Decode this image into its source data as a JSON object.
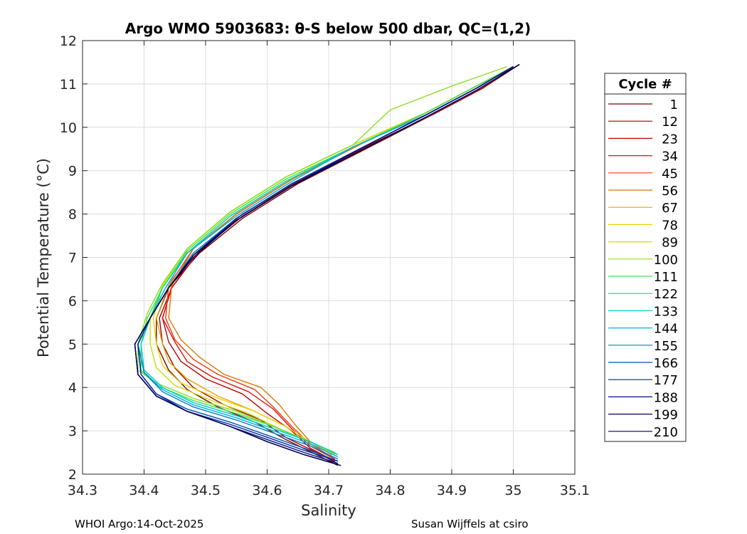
{
  "chart_data": {
    "type": "line",
    "title": "Argo WMO 5903683: θ-S below 500 dbar,  QC=(1,2)",
    "xlabel": "Salinity",
    "ylabel": "Potential Temperature (°C)",
    "xlim": [
      34.3,
      35.1
    ],
    "ylim": [
      2,
      12
    ],
    "xticks": [
      34.3,
      34.4,
      34.5,
      34.6,
      34.7,
      34.8,
      34.9,
      35,
      35.1
    ],
    "xtick_labels": [
      "34.3",
      "34.4",
      "34.5",
      "34.6",
      "34.7",
      "34.8",
      "34.9",
      "35",
      "35.1"
    ],
    "yticks": [
      2,
      3,
      4,
      5,
      6,
      7,
      8,
      9,
      10,
      11,
      12
    ],
    "ytick_labels": [
      "2",
      "3",
      "4",
      "5",
      "6",
      "7",
      "8",
      "9",
      "10",
      "11",
      "12"
    ],
    "grid": true,
    "legend": {
      "title": "Cycle #",
      "placement": "outside-right",
      "entries": [
        {
          "label": "1",
          "color": "#7f0000"
        },
        {
          "label": "12",
          "color": "#a00000"
        },
        {
          "label": "23",
          "color": "#c00000"
        },
        {
          "label": "34",
          "color": "#e01010"
        },
        {
          "label": "45",
          "color": "#f03a10"
        },
        {
          "label": "56",
          "color": "#d77800"
        },
        {
          "label": "67",
          "color": "#e0a800"
        },
        {
          "label": "78",
          "color": "#f0d000"
        },
        {
          "label": "89",
          "color": "#c8e000"
        },
        {
          "label": "100",
          "color": "#88e020"
        },
        {
          "label": "111",
          "color": "#40e050"
        },
        {
          "label": "122",
          "color": "#10d890"
        },
        {
          "label": "133",
          "color": "#00d0c8"
        },
        {
          "label": "144",
          "color": "#00b0e0"
        },
        {
          "label": "155",
          "color": "#0080c0"
        },
        {
          "label": "166",
          "color": "#0050b0"
        },
        {
          "label": "177",
          "color": "#0028a0"
        },
        {
          "label": "188",
          "color": "#001080"
        },
        {
          "label": "199",
          "color": "#000060"
        },
        {
          "label": "210",
          "color": "#000050"
        }
      ]
    },
    "series": [
      {
        "name": "1",
        "color": "#7f0000",
        "x": [
          34.715,
          34.68,
          34.63,
          34.58,
          34.52,
          34.47,
          34.44,
          34.42,
          34.42,
          34.44,
          34.49,
          34.56,
          34.65,
          34.76,
          34.87,
          34.95,
          35.01
        ],
        "y": [
          2.2,
          2.45,
          2.8,
          3.2,
          3.55,
          3.95,
          4.4,
          5.0,
          5.6,
          6.3,
          7.1,
          7.9,
          8.7,
          9.5,
          10.3,
          10.9,
          11.45
        ]
      },
      {
        "name": "12",
        "color": "#a00000",
        "x": [
          34.714,
          34.68,
          34.63,
          34.59,
          34.53,
          34.48,
          34.45,
          34.43,
          34.425,
          34.445,
          34.49,
          34.56,
          34.65,
          34.76,
          34.87,
          34.95,
          35.0
        ],
        "y": [
          2.25,
          2.5,
          2.85,
          3.25,
          3.6,
          4.0,
          4.45,
          5.0,
          5.6,
          6.3,
          7.15,
          7.95,
          8.75,
          9.55,
          10.3,
          10.9,
          11.4
        ]
      },
      {
        "name": "23",
        "color": "#c00000",
        "x": [
          34.71,
          34.67,
          34.64,
          34.6,
          34.56,
          34.5,
          34.46,
          34.44,
          34.43,
          34.445,
          34.49,
          34.56,
          34.65,
          34.76,
          34.87,
          34.95,
          35.0
        ],
        "y": [
          2.3,
          2.6,
          3.0,
          3.4,
          3.85,
          4.2,
          4.6,
          5.05,
          5.6,
          6.3,
          7.15,
          8.0,
          8.75,
          9.55,
          10.3,
          10.9,
          11.4
        ]
      },
      {
        "name": "34",
        "color": "#e01010",
        "x": [
          34.71,
          34.67,
          34.64,
          34.61,
          34.57,
          34.51,
          34.47,
          34.45,
          34.43,
          34.445,
          34.48,
          34.55,
          34.64,
          34.75,
          34.86,
          34.94,
          35.0
        ],
        "y": [
          2.35,
          2.65,
          3.05,
          3.5,
          3.9,
          4.25,
          4.6,
          5.05,
          5.6,
          6.35,
          7.2,
          8.0,
          8.8,
          9.6,
          10.35,
          10.95,
          11.4
        ]
      },
      {
        "name": "45",
        "color": "#f03a10",
        "x": [
          34.705,
          34.67,
          34.64,
          34.61,
          34.58,
          34.52,
          34.48,
          34.45,
          34.435,
          34.44,
          34.48,
          34.55,
          34.64,
          34.75,
          34.86,
          34.94,
          35.0
        ],
        "y": [
          2.4,
          2.7,
          3.1,
          3.55,
          3.95,
          4.3,
          4.65,
          5.1,
          5.6,
          6.35,
          7.2,
          8.0,
          8.8,
          9.6,
          10.35,
          10.95,
          11.4
        ]
      },
      {
        "name": "56",
        "color": "#d77800",
        "x": [
          34.705,
          34.67,
          34.645,
          34.62,
          34.59,
          34.53,
          34.49,
          34.46,
          34.44,
          34.445,
          34.48,
          34.55,
          34.64,
          34.75,
          34.86,
          34.94,
          35.0
        ],
        "y": [
          2.45,
          2.75,
          3.15,
          3.6,
          4.0,
          4.3,
          4.7,
          5.1,
          5.6,
          6.35,
          7.2,
          8.0,
          8.8,
          9.6,
          10.35,
          10.95,
          11.4
        ]
      },
      {
        "name": "67",
        "color": "#e0a800",
        "x": [
          34.71,
          34.67,
          34.63,
          34.58,
          34.52,
          34.47,
          34.44,
          34.43,
          34.42,
          34.44,
          34.47,
          34.54,
          34.63,
          34.74,
          34.86,
          34.94,
          35.0
        ],
        "y": [
          2.45,
          2.75,
          3.1,
          3.45,
          3.8,
          4.2,
          4.6,
          5.0,
          5.6,
          6.35,
          7.2,
          8.05,
          8.85,
          9.6,
          10.35,
          10.95,
          11.4
        ]
      },
      {
        "name": "78",
        "color": "#f0d000",
        "x": [
          34.71,
          34.67,
          34.63,
          34.58,
          34.52,
          34.46,
          34.43,
          34.42,
          34.415,
          34.43,
          34.47,
          34.54,
          34.63,
          34.74,
          34.86,
          34.94,
          35.0
        ],
        "y": [
          2.45,
          2.75,
          3.1,
          3.45,
          3.75,
          4.1,
          4.5,
          5.0,
          5.6,
          6.35,
          7.2,
          8.05,
          8.85,
          9.6,
          10.35,
          10.95,
          11.4
        ]
      },
      {
        "name": "89",
        "color": "#c8e000",
        "x": [
          34.71,
          34.67,
          34.62,
          34.57,
          34.51,
          34.45,
          34.42,
          34.41,
          34.41,
          34.43,
          34.47,
          34.54,
          34.63,
          34.74,
          34.86,
          34.94,
          35.0
        ],
        "y": [
          2.45,
          2.75,
          3.05,
          3.4,
          3.7,
          4.05,
          4.45,
          5.0,
          5.6,
          6.35,
          7.2,
          8.05,
          8.85,
          9.6,
          10.35,
          10.95,
          11.4
        ]
      },
      {
        "name": "100",
        "color": "#88e020",
        "x": [
          34.71,
          34.66,
          34.61,
          34.55,
          34.48,
          34.42,
          34.39,
          34.39,
          34.405,
          34.43,
          34.47,
          34.54,
          34.63,
          34.74,
          34.8,
          34.9,
          34.99
        ],
        "y": [
          2.5,
          2.8,
          3.1,
          3.45,
          3.75,
          4.1,
          4.4,
          5.0,
          5.7,
          6.4,
          7.2,
          8.05,
          8.85,
          9.6,
          10.4,
          10.95,
          11.4
        ]
      },
      {
        "name": "111",
        "color": "#40e050",
        "x": [
          34.71,
          34.66,
          34.61,
          34.55,
          34.48,
          34.42,
          34.395,
          34.395,
          34.405,
          34.43,
          34.47,
          34.54,
          34.63,
          34.74,
          34.86,
          34.94,
          35.0
        ],
        "y": [
          2.5,
          2.8,
          3.1,
          3.4,
          3.7,
          4.05,
          4.4,
          5.0,
          5.6,
          6.3,
          7.15,
          8.0,
          8.8,
          9.55,
          10.35,
          10.95,
          11.4
        ]
      },
      {
        "name": "122",
        "color": "#10d890",
        "x": [
          34.715,
          34.67,
          34.61,
          34.55,
          34.48,
          34.43,
          34.4,
          34.395,
          34.41,
          34.43,
          34.47,
          34.54,
          34.63,
          34.74,
          34.86,
          34.94,
          35.0
        ],
        "y": [
          2.45,
          2.75,
          3.05,
          3.35,
          3.65,
          4.0,
          4.4,
          5.0,
          5.6,
          6.3,
          7.1,
          7.95,
          8.75,
          9.55,
          10.3,
          10.9,
          11.4
        ]
      },
      {
        "name": "133",
        "color": "#00d0c8",
        "x": [
          34.715,
          34.67,
          34.61,
          34.55,
          34.48,
          34.43,
          34.4,
          34.395,
          34.41,
          34.435,
          34.47,
          34.54,
          34.63,
          34.74,
          34.86,
          34.94,
          35.0
        ],
        "y": [
          2.45,
          2.75,
          3.05,
          3.35,
          3.65,
          4.0,
          4.4,
          5.0,
          5.6,
          6.3,
          7.1,
          7.95,
          8.75,
          9.55,
          10.3,
          10.9,
          11.4
        ]
      },
      {
        "name": "144",
        "color": "#00b0e0",
        "x": [
          34.715,
          34.67,
          34.61,
          34.55,
          34.48,
          34.43,
          34.4,
          34.39,
          34.41,
          34.435,
          34.47,
          34.55,
          34.64,
          34.74,
          34.86,
          34.94,
          35.0
        ],
        "y": [
          2.4,
          2.7,
          3.0,
          3.3,
          3.6,
          3.95,
          4.35,
          5.0,
          5.6,
          6.3,
          7.1,
          7.95,
          8.75,
          9.55,
          10.3,
          10.9,
          11.4
        ]
      },
      {
        "name": "155",
        "color": "#0080c0",
        "x": [
          34.715,
          34.67,
          34.61,
          34.55,
          34.48,
          34.43,
          34.4,
          34.39,
          34.41,
          34.44,
          34.48,
          34.55,
          34.64,
          34.75,
          34.86,
          34.94,
          35.0
        ],
        "y": [
          2.35,
          2.65,
          2.95,
          3.25,
          3.55,
          3.9,
          4.35,
          5.0,
          5.6,
          6.3,
          7.1,
          7.9,
          8.7,
          9.5,
          10.3,
          10.9,
          11.4
        ]
      },
      {
        "name": "166",
        "color": "#0050b0",
        "x": [
          34.715,
          34.66,
          34.6,
          34.54,
          34.47,
          34.42,
          34.395,
          34.39,
          34.41,
          34.44,
          34.48,
          34.55,
          34.64,
          34.75,
          34.86,
          34.94,
          35.0
        ],
        "y": [
          2.3,
          2.6,
          2.9,
          3.2,
          3.5,
          3.85,
          4.3,
          5.0,
          5.6,
          6.3,
          7.05,
          7.9,
          8.7,
          9.5,
          10.3,
          10.9,
          11.4
        ]
      },
      {
        "name": "177",
        "color": "#0028a0",
        "x": [
          34.715,
          34.66,
          34.6,
          34.54,
          34.47,
          34.42,
          34.395,
          34.39,
          34.41,
          34.44,
          34.48,
          34.55,
          34.64,
          34.75,
          34.86,
          34.94,
          35.0
        ],
        "y": [
          2.3,
          2.55,
          2.85,
          3.15,
          3.45,
          3.85,
          4.3,
          5.0,
          5.6,
          6.3,
          7.05,
          7.9,
          8.7,
          9.5,
          10.3,
          10.9,
          11.4
        ]
      },
      {
        "name": "188",
        "color": "#001080",
        "x": [
          34.715,
          34.66,
          34.6,
          34.54,
          34.47,
          34.42,
          34.39,
          34.385,
          34.41,
          34.44,
          34.48,
          34.55,
          34.64,
          34.75,
          34.86,
          34.94,
          35.0
        ],
        "y": [
          2.25,
          2.5,
          2.8,
          3.1,
          3.45,
          3.8,
          4.3,
          5.0,
          5.6,
          6.3,
          7.05,
          7.85,
          8.65,
          9.5,
          10.3,
          10.9,
          11.4
        ]
      },
      {
        "name": "199",
        "color": "#000060",
        "x": [
          34.715,
          34.66,
          34.6,
          34.54,
          34.47,
          34.42,
          34.39,
          34.385,
          34.41,
          34.44,
          34.48,
          34.55,
          34.64,
          34.75,
          34.86,
          34.94,
          35.01
        ],
        "y": [
          2.22,
          2.45,
          2.75,
          3.1,
          3.45,
          3.8,
          4.3,
          5.0,
          5.6,
          6.3,
          7.05,
          7.85,
          8.65,
          9.45,
          10.25,
          10.85,
          11.45
        ]
      },
      {
        "name": "210",
        "color": "#000050",
        "x": [
          34.72,
          34.66,
          34.6,
          34.54,
          34.47,
          34.42,
          34.39,
          34.385,
          34.41,
          34.44,
          34.48,
          34.55,
          34.64,
          34.75,
          34.86,
          34.94,
          35.01
        ],
        "y": [
          2.2,
          2.45,
          2.75,
          3.1,
          3.45,
          3.8,
          4.3,
          5.0,
          5.6,
          6.3,
          7.0,
          7.85,
          8.65,
          9.45,
          10.25,
          10.85,
          11.45
        ]
      }
    ]
  },
  "footer": {
    "left": "WHOI Argo:14-Oct-2025",
    "right": "Susan Wijffels at csiro"
  }
}
